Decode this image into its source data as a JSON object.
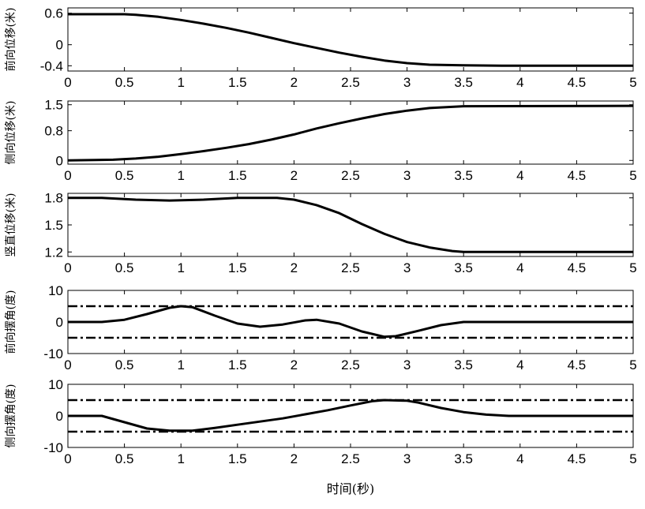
{
  "chart_data": [
    {
      "type": "line",
      "ylabel": "前向位移(米)",
      "xlim": [
        0,
        5
      ],
      "ylim": [
        -0.5,
        0.7
      ],
      "xticks": [
        "0",
        "0.5",
        "1",
        "1.5",
        "2",
        "2.5",
        "3",
        "3.5",
        "4",
        "4.5",
        "5"
      ],
      "yticks": [
        {
          "value": 0.6,
          "label": "0.6"
        },
        {
          "value": 0,
          "label": "0"
        },
        {
          "value": -0.4,
          "label": "-0.4"
        }
      ],
      "series": [
        {
          "x": [
            0,
            0.5,
            0.6,
            0.8,
            1.0,
            1.2,
            1.4,
            1.6,
            1.8,
            2.0,
            2.2,
            2.4,
            2.6,
            2.8,
            3.0,
            3.2,
            3.5,
            3.9,
            5.0
          ],
          "y": [
            0.58,
            0.58,
            0.57,
            0.53,
            0.47,
            0.4,
            0.32,
            0.23,
            0.13,
            0.03,
            -0.06,
            -0.15,
            -0.23,
            -0.3,
            -0.35,
            -0.38,
            -0.39,
            -0.4,
            -0.4
          ]
        }
      ],
      "reference_lines": []
    },
    {
      "type": "line",
      "ylabel": "侧向位移(米)",
      "xlim": [
        0,
        5
      ],
      "ylim": [
        -0.1,
        1.6
      ],
      "xticks": [
        "0",
        "0.5",
        "1",
        "1.5",
        "2",
        "2.5",
        "3",
        "3.5",
        "4",
        "4.5",
        "5"
      ],
      "yticks": [
        {
          "value": 1.5,
          "label": "1.5"
        },
        {
          "value": 0.8,
          "label": "0.8"
        },
        {
          "value": 0,
          "label": "0"
        }
      ],
      "series": [
        {
          "x": [
            0,
            0.4,
            0.6,
            0.8,
            1.0,
            1.2,
            1.4,
            1.6,
            1.8,
            2.0,
            2.2,
            2.4,
            2.6,
            2.8,
            3.0,
            3.2,
            3.5,
            5.0
          ],
          "y": [
            0,
            0.02,
            0.05,
            0.1,
            0.17,
            0.25,
            0.34,
            0.44,
            0.56,
            0.7,
            0.86,
            1.0,
            1.13,
            1.25,
            1.34,
            1.41,
            1.46,
            1.47
          ]
        }
      ],
      "reference_lines": []
    },
    {
      "type": "line",
      "ylabel": "竖直位移(米)",
      "xlim": [
        0,
        5
      ],
      "ylim": [
        1.15,
        1.85
      ],
      "xticks": [
        "0",
        "0.5",
        "1",
        "1.5",
        "2",
        "2.5",
        "3",
        "3.5",
        "4",
        "4.5",
        "5"
      ],
      "yticks": [
        {
          "value": 1.8,
          "label": "1.8"
        },
        {
          "value": 1.5,
          "label": "1.5"
        },
        {
          "value": 1.2,
          "label": "1.2"
        }
      ],
      "series": [
        {
          "x": [
            0,
            0.3,
            0.6,
            0.9,
            1.2,
            1.5,
            1.85,
            2.0,
            2.2,
            2.4,
            2.6,
            2.8,
            3.0,
            3.2,
            3.4,
            3.5,
            5.0
          ],
          "y": [
            1.8,
            1.8,
            1.78,
            1.77,
            1.78,
            1.8,
            1.8,
            1.78,
            1.72,
            1.63,
            1.51,
            1.4,
            1.31,
            1.25,
            1.21,
            1.2,
            1.2
          ]
        }
      ],
      "reference_lines": []
    },
    {
      "type": "line",
      "ylabel": "前向摆角(度)",
      "xlim": [
        0,
        5
      ],
      "ylim": [
        -10,
        10
      ],
      "xticks": [
        "0",
        "0.5",
        "1",
        "1.5",
        "2",
        "2.5",
        "3",
        "3.5",
        "4",
        "4.5",
        "5"
      ],
      "yticks": [
        {
          "value": 10,
          "label": "10"
        },
        {
          "value": 0,
          "label": "0"
        },
        {
          "value": -10,
          "label": "-10"
        }
      ],
      "series": [
        {
          "x": [
            0,
            0.3,
            0.5,
            0.7,
            0.9,
            1.0,
            1.1,
            1.3,
            1.5,
            1.7,
            1.9,
            2.1,
            2.2,
            2.4,
            2.6,
            2.8,
            2.9,
            3.1,
            3.3,
            3.5,
            5.0
          ],
          "y": [
            0,
            0,
            0.7,
            2.5,
            4.5,
            5.0,
            4.7,
            2.0,
            -0.5,
            -1.5,
            -0.8,
            0.5,
            0.7,
            -0.5,
            -3.0,
            -4.7,
            -4.5,
            -2.8,
            -1.0,
            0,
            0
          ]
        }
      ],
      "reference_lines": [
        5,
        -5
      ]
    },
    {
      "type": "line",
      "ylabel": "侧向摆角(度)",
      "xlim": [
        0,
        5
      ],
      "ylim": [
        -10,
        10
      ],
      "xticks": [
        "0",
        "0.5",
        "1",
        "1.5",
        "2",
        "2.5",
        "3",
        "3.5",
        "4",
        "4.5",
        "5"
      ],
      "yticks": [
        {
          "value": 10,
          "label": "10"
        },
        {
          "value": 0,
          "label": "0"
        },
        {
          "value": -10,
          "label": "-10"
        }
      ],
      "series": [
        {
          "x": [
            0,
            0.3,
            0.5,
            0.7,
            0.9,
            1.1,
            1.3,
            1.5,
            1.7,
            1.9,
            2.1,
            2.3,
            2.5,
            2.7,
            2.8,
            3.0,
            3.1,
            3.3,
            3.5,
            3.7,
            3.9,
            5.0
          ],
          "y": [
            0,
            0,
            -2.0,
            -4.0,
            -4.7,
            -4.7,
            -3.8,
            -2.8,
            -1.8,
            -0.8,
            0.5,
            1.8,
            3.3,
            4.7,
            5.0,
            4.8,
            4.2,
            2.5,
            1.2,
            0.4,
            0,
            0
          ]
        }
      ],
      "reference_lines": [
        5,
        -5
      ]
    }
  ],
  "xlabel": "时间(秒)"
}
